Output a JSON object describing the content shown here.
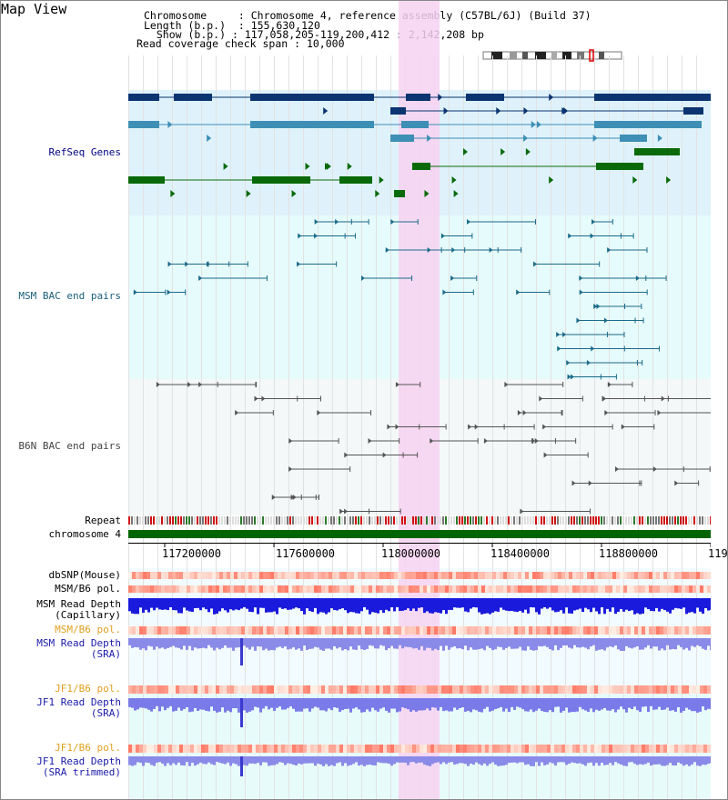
{
  "title": "Map View",
  "info": {
    "chromosome_label": "Chromosome",
    "chromosome_value": "Chromosome 4, reference assembly (C57BL/6J) (Build 37)",
    "length_label": "Length (b.p.)",
    "length_value": "155,630,120",
    "show_label": "Show (b.p.)",
    "show_value": "117,058,205-119,200,412 : 2,142,208 bp",
    "span_label": "Read coverage check span",
    "span_value": "10,000"
  },
  "tracks": {
    "refseq": "RefSeq Genes",
    "msm_bac": "MSM BAC end pairs",
    "b6n_bac": "B6N BAC end pairs",
    "repeat": "Repeat",
    "chromosome": "chromosome 4",
    "dbsnp": "dbSNP(Mouse)",
    "msm_b6_pol_1": "MSM/B6 pol.",
    "msm_read_cap_1": "MSM Read Depth",
    "msm_read_cap_2": "(Capillary)",
    "msm_b6_pol_2": "MSM/B6 pol.",
    "msm_read_sra_1": "MSM Read Depth",
    "msm_read_sra_2": "(SRA)",
    "jf1_b6_pol_1": "JF1/B6 pol.",
    "jf1_read_sra_1": "JF1 Read Depth",
    "jf1_read_sra_2": "(SRA)",
    "jf1_b6_pol_2": "JF1/B6 pol.",
    "jf1_read_trim_1": "JF1 Read Depth",
    "jf1_read_trim_2": "(SRA trimmed)"
  },
  "axis": {
    "ticks": [
      "117200000",
      "117600000",
      "118000000",
      "118400000",
      "118800000",
      "119"
    ]
  },
  "colors": {
    "refseq_bg": "#dff2fb",
    "msm_bg": "#e6fbfb",
    "b6n_bg": "#f4f8f8",
    "highlight": "#f7d2f1",
    "navy_gene": "#0b3470",
    "mid_gene": "#3e8fb5",
    "green_gene": "#0a6a0a",
    "msm_line": "#1a6a8a",
    "b6n_line": "#555555",
    "chrom_bar": "#006400"
  }
}
